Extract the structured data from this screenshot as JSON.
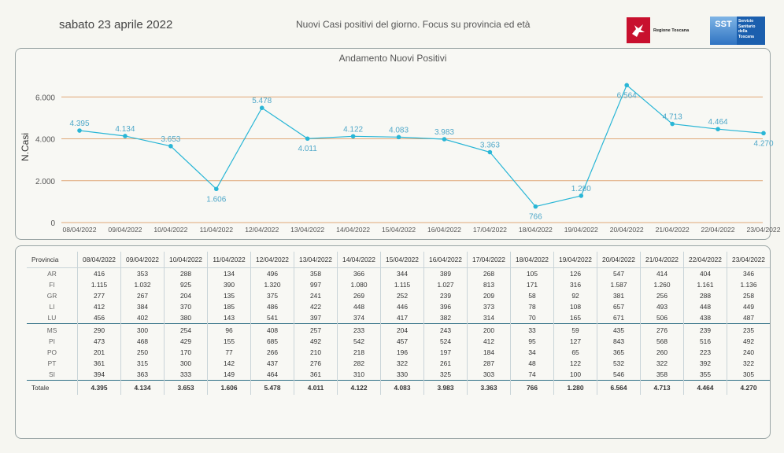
{
  "header": {
    "date": "sabato 23 aprile 2022",
    "title": "Nuovi Casi positivi del giorno. Focus su provincia ed età",
    "logo_regione": "Regione Toscana",
    "logo_sst_mark": "SST",
    "logo_sst_text": "Servizio Sanitario della Toscana"
  },
  "colors": {
    "line": "#29b6d6",
    "label": "#4fa8c9",
    "grid": "#e0a878",
    "text": "#555555"
  },
  "chart_data": {
    "type": "line",
    "title": "Andamento Nuovi Positivi",
    "xlabel": "",
    "ylabel": "N.Casi",
    "ylim": [
      0,
      6500
    ],
    "yticks": [
      0,
      2000,
      4000,
      6000
    ],
    "ytick_labels": [
      "0",
      "2.000",
      "4.000",
      "6.000"
    ],
    "categories": [
      "08/04/2022",
      "09/04/2022",
      "10/04/2022",
      "11/04/2022",
      "12/04/2022",
      "13/04/2022",
      "14/04/2022",
      "15/04/2022",
      "16/04/2022",
      "17/04/2022",
      "18/04/2022",
      "19/04/2022",
      "20/04/2022",
      "21/04/2022",
      "22/04/2022",
      "23/04/2022"
    ],
    "values": [
      4395,
      4134,
      3653,
      1606,
      5478,
      4011,
      4122,
      4083,
      3983,
      3363,
      766,
      1280,
      6564,
      4713,
      4464,
      4270
    ],
    "value_labels": [
      "4.395",
      "4.134",
      "3.653",
      "1.606",
      "5.478",
      "4.011",
      "4.122",
      "4.083",
      "3.983",
      "3.363",
      "766",
      "1.280",
      "6.564",
      "4.713",
      "4.464",
      "4.270"
    ],
    "label_pos": [
      "above",
      "above",
      "above",
      "below",
      "above",
      "below",
      "above",
      "above",
      "above",
      "above",
      "below",
      "above",
      "below",
      "above",
      "above",
      "below"
    ]
  },
  "table": {
    "corner": "Provincia",
    "columns": [
      "08/04/2022",
      "09/04/2022",
      "10/04/2022",
      "11/04/2022",
      "12/04/2022",
      "13/04/2022",
      "14/04/2022",
      "15/04/2022",
      "16/04/2022",
      "17/04/2022",
      "18/04/2022",
      "19/04/2022",
      "20/04/2022",
      "21/04/2022",
      "22/04/2022",
      "23/04/2022"
    ],
    "rows": [
      {
        "name": "AR",
        "values": [
          "416",
          "353",
          "288",
          "134",
          "496",
          "358",
          "366",
          "344",
          "389",
          "268",
          "105",
          "126",
          "547",
          "414",
          "404",
          "346"
        ]
      },
      {
        "name": "FI",
        "values": [
          "1.115",
          "1.032",
          "925",
          "390",
          "1.320",
          "997",
          "1.080",
          "1.115",
          "1.027",
          "813",
          "171",
          "316",
          "1.587",
          "1.260",
          "1.161",
          "1.136"
        ]
      },
      {
        "name": "GR",
        "values": [
          "277",
          "267",
          "204",
          "135",
          "375",
          "241",
          "269",
          "252",
          "239",
          "209",
          "58",
          "92",
          "381",
          "256",
          "288",
          "258"
        ]
      },
      {
        "name": "LI",
        "values": [
          "412",
          "384",
          "370",
          "185",
          "486",
          "422",
          "448",
          "446",
          "396",
          "373",
          "78",
          "108",
          "657",
          "493",
          "448",
          "449"
        ]
      },
      {
        "name": "LU",
        "values": [
          "456",
          "402",
          "380",
          "143",
          "541",
          "397",
          "374",
          "417",
          "382",
          "314",
          "70",
          "165",
          "671",
          "506",
          "438",
          "487"
        ]
      },
      {
        "name": "MS",
        "values": [
          "290",
          "300",
          "254",
          "96",
          "408",
          "257",
          "233",
          "204",
          "243",
          "200",
          "33",
          "59",
          "435",
          "276",
          "239",
          "235"
        ]
      },
      {
        "name": "PI",
        "values": [
          "473",
          "468",
          "429",
          "155",
          "685",
          "492",
          "542",
          "457",
          "524",
          "412",
          "95",
          "127",
          "843",
          "568",
          "516",
          "492"
        ]
      },
      {
        "name": "PO",
        "values": [
          "201",
          "250",
          "170",
          "77",
          "266",
          "210",
          "218",
          "196",
          "197",
          "184",
          "34",
          "65",
          "365",
          "260",
          "223",
          "240"
        ]
      },
      {
        "name": "PT",
        "values": [
          "361",
          "315",
          "300",
          "142",
          "437",
          "276",
          "282",
          "322",
          "261",
          "287",
          "48",
          "122",
          "532",
          "322",
          "392",
          "322"
        ]
      },
      {
        "name": "SI",
        "values": [
          "394",
          "363",
          "333",
          "149",
          "464",
          "361",
          "310",
          "330",
          "325",
          "303",
          "74",
          "100",
          "546",
          "358",
          "355",
          "305"
        ]
      }
    ],
    "total": {
      "name": "Totale",
      "values": [
        "4.395",
        "4.134",
        "3.653",
        "1.606",
        "5.478",
        "4.011",
        "4.122",
        "4.083",
        "3.983",
        "3.363",
        "766",
        "1.280",
        "6.564",
        "4.713",
        "4.464",
        "4.270"
      ]
    }
  }
}
